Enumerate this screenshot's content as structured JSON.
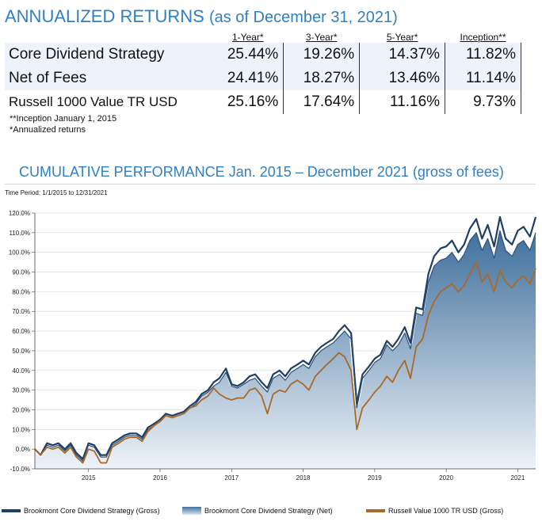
{
  "returns": {
    "title": "ANNUALIZED RETURNS",
    "subtitle": "(as of December 31, 2021)",
    "headers": [
      "1-Year*",
      "3-Year*",
      "5-Year*",
      "Inception**"
    ],
    "rows": [
      {
        "name": "Core Dividend Strategy",
        "values": [
          "25.44%",
          "19.26%",
          "14.37%",
          "11.82%"
        ]
      },
      {
        "name": "Net of Fees",
        "values": [
          "24.41%",
          "18.27%",
          "13.46%",
          "11.14%"
        ]
      },
      {
        "name": "Russell 1000 Value TR USD",
        "values": [
          "25.16%",
          "17.64%",
          "11.16%",
          "9.73%"
        ]
      }
    ],
    "footnotes": [
      "**Inception January 1, 2015",
      "*Annualized returns"
    ]
  },
  "perf": {
    "title": "CUMULATIVE PERFORMANCE Jan. 2015 – December 2021 (gross of fees)",
    "time_period": "Time Period: 1/1/2015 to 12/31/2021"
  },
  "colors": {
    "gross": "#1f3f64",
    "net_top": "#3f6f9c",
    "net_bottom": "#eef3f8",
    "russell": "#a86a2a",
    "title": "#2f7fc4"
  },
  "chart_data": {
    "type": "line",
    "ylim": [
      -10,
      120
    ],
    "yticks": [
      -10,
      0,
      10,
      20,
      30,
      40,
      50,
      60,
      70,
      80,
      90,
      100,
      110,
      120
    ],
    "ytick_labels": [
      "-10.0%",
      "0.0%",
      "10.0%",
      "20.0%",
      "30.0%",
      "40.0%",
      "50.0%",
      "60.0%",
      "70.0%",
      "80.0%",
      "90.0%",
      "100.0%",
      "110.0%",
      "120.0%"
    ],
    "xlim": [
      2014.0,
      2021.0
    ],
    "xtick_labels": [
      "2015",
      "2016",
      "2017",
      "2018",
      "2019",
      "2020",
      "2021"
    ],
    "xtick_positions": [
      2014.75,
      2015.75,
      2016.75,
      2017.75,
      2018.75,
      2019.75,
      2020.75
    ],
    "x": [
      2014.0,
      2014.08,
      2014.17,
      2014.25,
      2014.33,
      2014.42,
      2014.5,
      2014.58,
      2014.67,
      2014.75,
      2014.83,
      2014.92,
      2015.0,
      2015.08,
      2015.17,
      2015.25,
      2015.33,
      2015.42,
      2015.5,
      2015.58,
      2015.67,
      2015.75,
      2015.83,
      2015.92,
      2016.0,
      2016.08,
      2016.17,
      2016.25,
      2016.33,
      2016.42,
      2016.5,
      2016.58,
      2016.67,
      2016.75,
      2016.83,
      2016.92,
      2017.0,
      2017.08,
      2017.17,
      2017.25,
      2017.33,
      2017.42,
      2017.5,
      2017.58,
      2017.67,
      2017.75,
      2017.83,
      2017.92,
      2018.0,
      2018.08,
      2018.17,
      2018.25,
      2018.33,
      2018.42,
      2018.5,
      2018.58,
      2018.67,
      2018.75,
      2018.83,
      2018.92,
      2019.0,
      2019.08,
      2019.17,
      2019.25,
      2019.33,
      2019.42,
      2019.5,
      2019.58,
      2019.67,
      2019.75,
      2019.83,
      2019.92,
      2020.0,
      2020.08,
      2020.17,
      2020.25,
      2020.33,
      2020.42,
      2020.5,
      2020.58,
      2020.67,
      2020.75,
      2020.83,
      2020.92,
      2021.0
    ],
    "series": [
      {
        "name": "Brookmont Core Dividend Strategy (Gross)",
        "values": [
          0,
          -3,
          3,
          2,
          3,
          0,
          3,
          -2,
          -5,
          3,
          2,
          -3,
          -3,
          3,
          5,
          7,
          8,
          8,
          6,
          11,
          13,
          15,
          18,
          17,
          18,
          19,
          22,
          24,
          28,
          30,
          34,
          36,
          41,
          33,
          32,
          34,
          37,
          38,
          34,
          31,
          38,
          40,
          37,
          41,
          43,
          45,
          43,
          49,
          52,
          54,
          56,
          60,
          63,
          59,
          23,
          38,
          42,
          46,
          48,
          55,
          52,
          56,
          62,
          54,
          72,
          71,
          89,
          98,
          102,
          103,
          106,
          100,
          104,
          112,
          117,
          107,
          114,
          103,
          118,
          107,
          104,
          111,
          113,
          108,
          118
        ]
      },
      {
        "name": "Brookmont Core Dividend Strategy (Net)",
        "values": [
          0,
          -3,
          2,
          1,
          2,
          -1,
          2,
          -3,
          -6,
          2,
          1,
          -4,
          -4,
          2,
          4,
          6,
          7,
          7,
          5,
          10,
          12,
          14,
          17,
          16,
          17,
          18,
          21,
          23,
          27,
          29,
          32,
          34,
          39,
          32,
          31,
          33,
          35,
          36,
          32,
          29,
          36,
          38,
          35,
          39,
          41,
          43,
          41,
          47,
          50,
          52,
          54,
          57,
          60,
          56,
          21,
          36,
          40,
          44,
          46,
          53,
          50,
          53,
          59,
          51,
          69,
          68,
          85,
          93,
          96,
          97,
          100,
          95,
          99,
          106,
          110,
          101,
          107,
          97,
          111,
          101,
          98,
          104,
          106,
          101,
          110
        ]
      },
      {
        "name": "Russell Value 1000 TR USD (Gross)",
        "values": [
          0,
          -3,
          1,
          0,
          1,
          -2,
          1,
          -4,
          -7,
          0,
          -1,
          -7,
          -7,
          1,
          3,
          5,
          6,
          6,
          4,
          9,
          12,
          14,
          17,
          16,
          17,
          18,
          21,
          22,
          25,
          27,
          31,
          28,
          26,
          25,
          26,
          26,
          30,
          31,
          27,
          18,
          28,
          30,
          29,
          33,
          35,
          33,
          30,
          37,
          40,
          43,
          46,
          49,
          47,
          40,
          10,
          21,
          25,
          29,
          32,
          37,
          34,
          40,
          45,
          36,
          52,
          56,
          68,
          75,
          80,
          82,
          84,
          80,
          83,
          89,
          95,
          85,
          89,
          80,
          91,
          85,
          82,
          86,
          88,
          84,
          92
        ]
      }
    ]
  },
  "legend": [
    {
      "label": "Brookmont Core Dividend Strategy (Gross)"
    },
    {
      "label": "Brookmont Core Dividend Strategy (Net)"
    },
    {
      "label": "Russell Value 1000 TR USD (Gross)"
    }
  ]
}
